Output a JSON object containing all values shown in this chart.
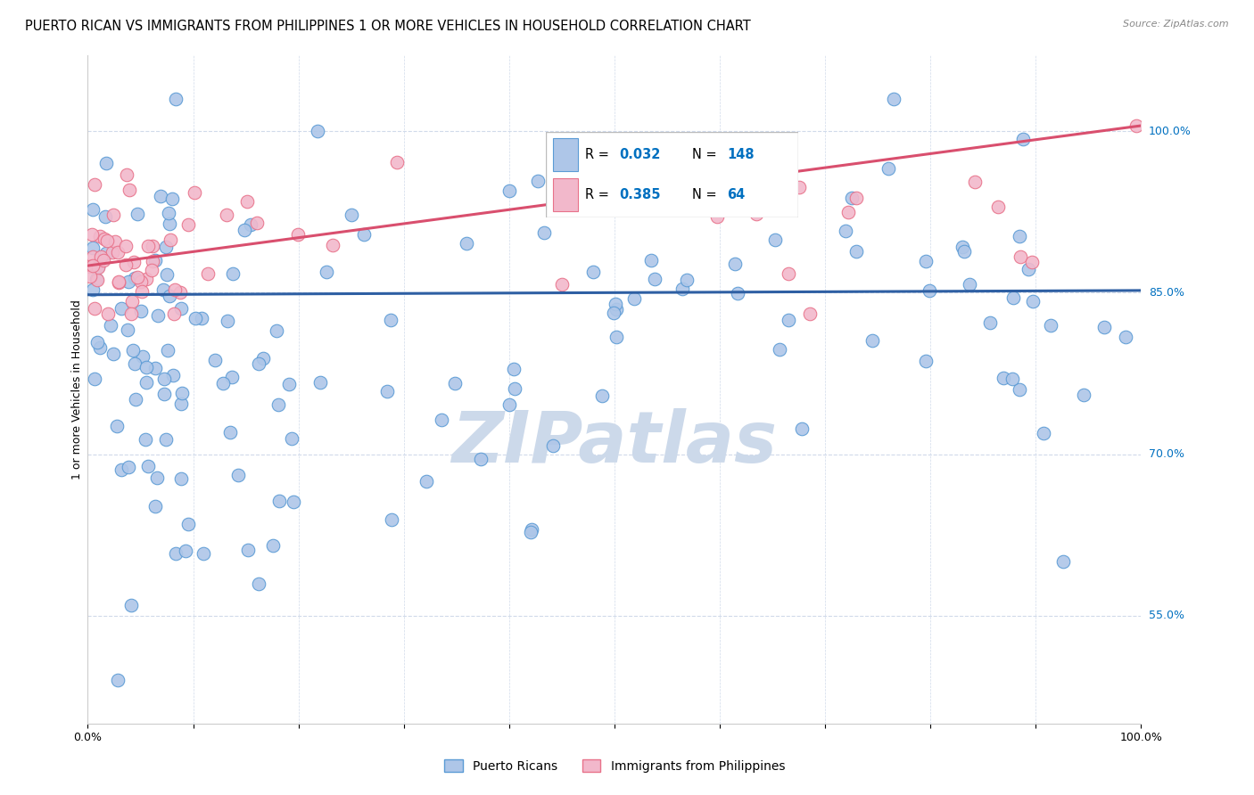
{
  "title": "PUERTO RICAN VS IMMIGRANTS FROM PHILIPPINES 1 OR MORE VEHICLES IN HOUSEHOLD CORRELATION CHART",
  "source": "Source: ZipAtlas.com",
  "ylabel": "1 or more Vehicles in Household",
  "xlim": [
    0,
    100
  ],
  "ylim": [
    45,
    107
  ],
  "yticks": [
    55,
    70,
    85,
    100
  ],
  "ytick_labels": [
    "55.0%",
    "70.0%",
    "85.0%",
    "100.0%"
  ],
  "blue_R": 0.032,
  "blue_N": 148,
  "pink_R": 0.385,
  "pink_N": 64,
  "blue_color": "#aec6e8",
  "pink_color": "#f2b8cb",
  "blue_edge_color": "#5b9bd5",
  "pink_edge_color": "#e8728a",
  "blue_line_color": "#2e5fa3",
  "pink_line_color": "#d94f6e",
  "legend_color": "#0070c0",
  "watermark": "ZIPatlas",
  "watermark_color": "#ccd9ea",
  "background_color": "#ffffff",
  "grid_color": "#d0daea",
  "title_fontsize": 10.5,
  "label_fontsize": 9,
  "tick_fontsize": 9,
  "blue_trend_start_y": 84.8,
  "blue_trend_end_y": 85.2,
  "pink_trend_start_y": 87.5,
  "pink_trend_end_y": 100.5
}
